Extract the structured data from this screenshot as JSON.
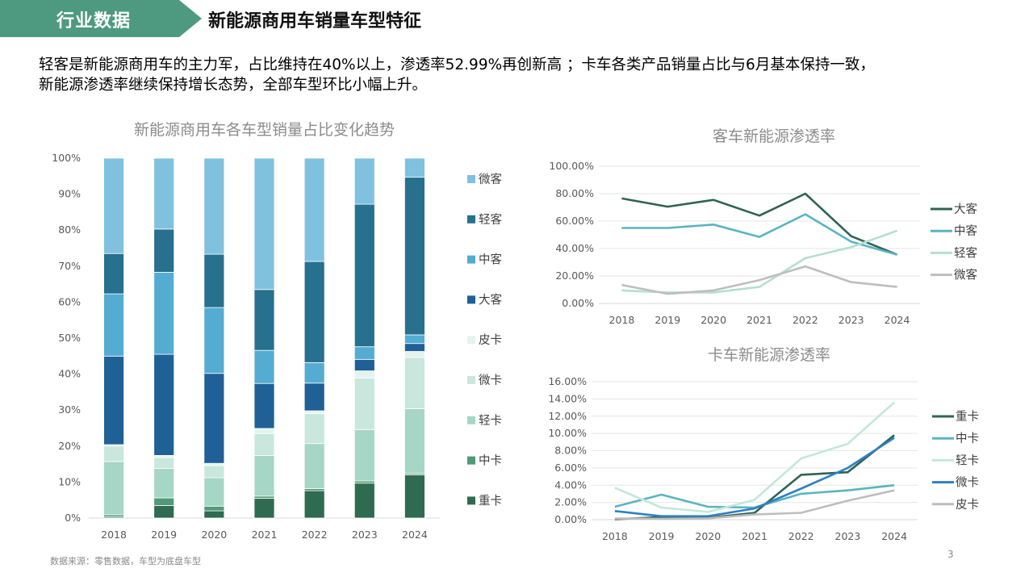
{
  "header": {
    "tab_label": "行业数据",
    "title": "新能源商用车销量车型特征"
  },
  "intro": {
    "line1": "轻客是新能源商用车的主力军，占比维持在40%以上，渗透率52.99%再创新高 ；卡车各类产品销量占比与6月基本保持一致，",
    "line2": "新能源渗透率继续保持增长态势，全部车型环比小幅上升。"
  },
  "footer": {
    "source": "数据来源：零售数据，车型为底盘车型",
    "page_number": "3"
  },
  "colors": {
    "header_tab": "#4e9a80",
    "重卡": "#2e6b50",
    "中卡": "#4f9a78",
    "轻卡": "#a6d6c5",
    "微卡": "#c9e7dc",
    "皮卡": "#e4f3ee",
    "大客": "#1f6096",
    "中客": "#54acd2",
    "轻客": "#27708e",
    "微客": "#80c1df",
    "line_大客": "#2f6454",
    "line_中客": "#5ab4c2",
    "line_轻客": "#b3e0d0",
    "line_微客": "#bebebe",
    "line_重卡": "#2f6454",
    "line_中卡": "#5ab4c2",
    "line_轻卡": "#c3e8d9",
    "line_微卡": "#2e80c2",
    "line_皮卡": "#bebebe"
  },
  "chart_data": [
    {
      "type": "bar",
      "stacked": true,
      "title": "新能源商用车各车型销量占比变化趋势",
      "categories": [
        "2018",
        "2019",
        "2020",
        "2021",
        "2022",
        "2023",
        "2024"
      ],
      "yticks": [
        "0%",
        "10%",
        "20%",
        "30%",
        "40%",
        "50%",
        "60%",
        "70%",
        "80%",
        "90%",
        "100%"
      ],
      "ylim": [
        0,
        100
      ],
      "legend_position": "right",
      "series": [
        {
          "name": "重卡",
          "values": [
            0.3,
            3.5,
            2.0,
            5.5,
            7.6,
            9.7,
            12.0
          ]
        },
        {
          "name": "中卡",
          "values": [
            0.6,
            2.1,
            1.3,
            0.6,
            0.6,
            0.6,
            0.4
          ]
        },
        {
          "name": "轻卡",
          "values": [
            14.8,
            8.2,
            7.9,
            11.3,
            12.5,
            14.3,
            18.0
          ]
        },
        {
          "name": "微卡",
          "values": [
            4.3,
            3.0,
            3.4,
            6.1,
            8.3,
            14.3,
            14.2
          ]
        },
        {
          "name": "皮卡",
          "values": [
            0.4,
            0.6,
            0.6,
            1.4,
            0.8,
            2.0,
            1.7
          ]
        },
        {
          "name": "大客",
          "values": [
            24.6,
            28.1,
            25.0,
            12.5,
            7.7,
            3.2,
            2.2
          ]
        },
        {
          "name": "中客",
          "values": [
            17.3,
            22.8,
            18.3,
            9.2,
            5.7,
            3.5,
            2.4
          ]
        },
        {
          "name": "轻客",
          "values": [
            11.2,
            12.0,
            14.8,
            16.9,
            28.1,
            39.6,
            43.8
          ]
        },
        {
          "name": "微客",
          "values": [
            26.5,
            19.7,
            26.7,
            36.5,
            28.7,
            12.8,
            5.3
          ]
        }
      ]
    },
    {
      "type": "line",
      "title": "客车新能源渗透率",
      "x": [
        "2018",
        "2019",
        "2020",
        "2021",
        "2022",
        "2023",
        "2024"
      ],
      "yticks": [
        "0.00%",
        "20.00%",
        "40.00%",
        "60.00%",
        "80.00%",
        "100.00%"
      ],
      "ylim": [
        0,
        100
      ],
      "legend_position": "right",
      "series": [
        {
          "name": "大客",
          "values": [
            76.5,
            70.5,
            75.5,
            64.0,
            80.0,
            49.0,
            35.5
          ]
        },
        {
          "name": "中客",
          "values": [
            55.0,
            55.0,
            57.5,
            48.5,
            65.0,
            45.0,
            35.5
          ]
        },
        {
          "name": "轻客",
          "values": [
            9.5,
            8.0,
            8.0,
            12.0,
            33.0,
            41.0,
            52.99
          ]
        },
        {
          "name": "微客",
          "values": [
            13.5,
            7.0,
            9.5,
            17.0,
            27.0,
            15.5,
            12.0
          ]
        }
      ]
    },
    {
      "type": "line",
      "title": "卡车新能源渗透率",
      "x": [
        "2018",
        "2019",
        "2020",
        "2021",
        "2022",
        "2023",
        "2024"
      ],
      "yticks": [
        "0.00%",
        "2.00%",
        "4.00%",
        "6.00%",
        "8.00%",
        "10.00%",
        "12.00%",
        "14.00%",
        "16.00%"
      ],
      "ylim": [
        0,
        16
      ],
      "legend_position": "right",
      "series": [
        {
          "name": "重卡",
          "values": [
            0.05,
            0.3,
            0.2,
            0.8,
            5.2,
            5.5,
            9.8
          ]
        },
        {
          "name": "中卡",
          "values": [
            1.5,
            2.9,
            1.5,
            1.4,
            3.0,
            3.4,
            4.0
          ]
        },
        {
          "name": "轻卡",
          "values": [
            3.7,
            1.4,
            0.9,
            2.3,
            7.1,
            8.8,
            13.6
          ]
        },
        {
          "name": "微卡",
          "values": [
            1.0,
            0.4,
            0.4,
            1.3,
            3.6,
            6.0,
            9.5
          ]
        },
        {
          "name": "皮卡",
          "values": [
            0.15,
            0.1,
            0.15,
            0.6,
            0.8,
            2.2,
            3.4
          ]
        }
      ]
    }
  ]
}
